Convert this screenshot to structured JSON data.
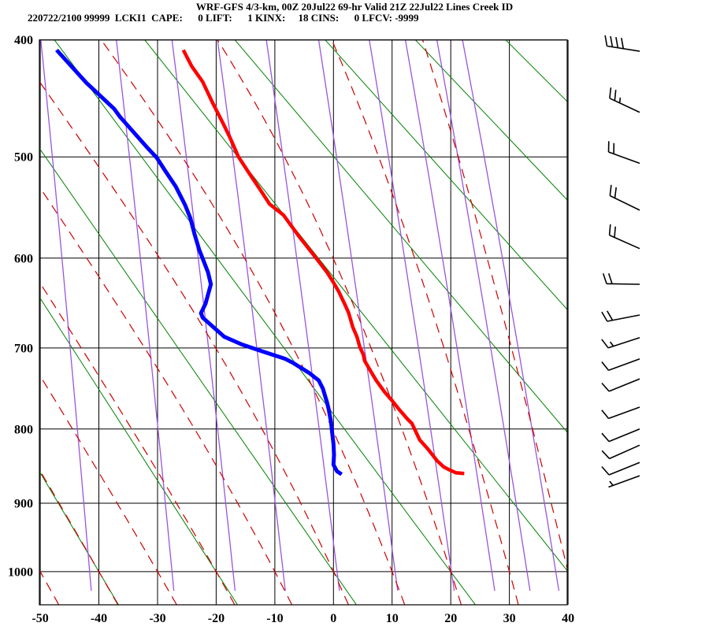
{
  "header": {
    "title_line1": "WRF-GFS 4/3-km, 00Z 20Jul22 69-hr Valid 21Z 22Jul22 Lines Creek ID",
    "title_line2": "220722/2100 99999  LCKI1  CAPE:      0 LIFT:      1 KINX:     18 CINS:      0 LFCV: -9999"
  },
  "colors": {
    "temperature": "#ff0000",
    "dewpoint": "#0000ff",
    "dry_adiabat": "#008000",
    "moist_adiabat": "#cc0000",
    "mixing_ratio": "#9955dd",
    "grid": "#000000",
    "text": "#000000",
    "background": "#ffffff"
  },
  "chart_data": {
    "type": "line",
    "chart_style": "stuve-sounding",
    "title": "WRF-GFS 4/3-km, 00Z 20Jul22 69-hr Valid 21Z 22Jul22 Lines Creek ID",
    "x_axis": {
      "unit": "degC",
      "range": [
        -50.1,
        39.9
      ],
      "ticks": [
        -50,
        -40,
        -30,
        -20,
        -10,
        0,
        10,
        20,
        30,
        40
      ]
    },
    "y_axis": {
      "unit": "hPa",
      "range": [
        400,
        1051
      ],
      "scale": "p^0.286",
      "ticks": [
        400,
        500,
        600,
        700,
        800,
        900,
        1000
      ]
    },
    "grid": "on",
    "background_lines": {
      "dry_adiabats_theta_C": [
        -40,
        -20,
        0,
        20,
        40,
        60,
        80,
        100,
        120
      ],
      "moist_adiabats_thetaw_C": [
        -60,
        -50,
        -40,
        -30,
        -20,
        -10,
        0,
        10,
        20,
        30,
        40
      ],
      "mixing_ratio_g_kg": [
        0.1,
        0.4,
        1,
        2,
        4,
        8,
        15,
        23,
        33,
        44
      ]
    },
    "series": [
      {
        "name": "temperature",
        "color": "#ff0000",
        "points": [
          [
            408,
            -25.6
          ],
          [
            421,
            -24.2
          ],
          [
            434,
            -22.3
          ],
          [
            452,
            -20.6
          ],
          [
            470,
            -18.8
          ],
          [
            483,
            -17.6
          ],
          [
            500,
            -16.2
          ],
          [
            516,
            -14.3
          ],
          [
            531,
            -12.5
          ],
          [
            545,
            -10.9
          ],
          [
            556,
            -8.5
          ],
          [
            578,
            -5.8
          ],
          [
            602,
            -2.7
          ],
          [
            615,
            -1.1
          ],
          [
            626,
            0.0
          ],
          [
            636,
            0.9
          ],
          [
            651,
            2.0
          ],
          [
            660,
            2.6
          ],
          [
            676,
            3.3
          ],
          [
            687,
            4.0
          ],
          [
            699,
            4.5
          ],
          [
            708,
            5.1
          ],
          [
            715,
            5.3
          ],
          [
            727,
            6.3
          ],
          [
            739,
            7.3
          ],
          [
            753,
            8.7
          ],
          [
            763,
            9.9
          ],
          [
            775,
            11.2
          ],
          [
            787,
            12.6
          ],
          [
            793,
            13.4
          ],
          [
            814,
            14.7
          ],
          [
            826,
            16.1
          ],
          [
            842,
            17.7
          ],
          [
            850,
            18.8
          ],
          [
            854,
            19.8
          ],
          [
            858,
            20.9
          ],
          [
            859,
            22.3
          ]
        ]
      },
      {
        "name": "dewpoint",
        "color": "#0000ff",
        "points": [
          [
            408,
            -47.2
          ],
          [
            435,
            -42.1
          ],
          [
            457,
            -37.4
          ],
          [
            464,
            -36.4
          ],
          [
            490,
            -32.0
          ],
          [
            501,
            -30.1
          ],
          [
            513,
            -28.7
          ],
          [
            528,
            -26.9
          ],
          [
            546,
            -25.3
          ],
          [
            559,
            -24.4
          ],
          [
            575,
            -23.7
          ],
          [
            591,
            -22.9
          ],
          [
            602,
            -22.2
          ],
          [
            615,
            -21.4
          ],
          [
            628,
            -20.9
          ],
          [
            649,
            -21.8
          ],
          [
            660,
            -22.6
          ],
          [
            665,
            -22.3
          ],
          [
            672,
            -21.1
          ],
          [
            687,
            -18.6
          ],
          [
            696,
            -15.6
          ],
          [
            704,
            -12.1
          ],
          [
            713,
            -8.2
          ],
          [
            718,
            -6.8
          ],
          [
            730,
            -4.1
          ],
          [
            739,
            -2.5
          ],
          [
            749,
            -1.8
          ],
          [
            766,
            -1.1
          ],
          [
            775,
            -0.8
          ],
          [
            792,
            -0.4
          ],
          [
            806,
            -0.2
          ],
          [
            819,
            0.0
          ],
          [
            834,
            0.1
          ],
          [
            847,
            0.0
          ],
          [
            856,
            0.6
          ],
          [
            860,
            1.4
          ]
        ]
      }
    ],
    "wind_barbs": [
      {
        "p": 409,
        "dir_deg": 279,
        "spd_kt": 40
      },
      {
        "p": 460,
        "dir_deg": 295,
        "spd_kt": 25
      },
      {
        "p": 506,
        "dir_deg": 290,
        "spd_kt": 20
      },
      {
        "p": 551,
        "dir_deg": 296,
        "spd_kt": 20
      },
      {
        "p": 590,
        "dir_deg": 294,
        "spd_kt": 20
      },
      {
        "p": 628,
        "dir_deg": 271,
        "spd_kt": 20
      },
      {
        "p": 662,
        "dir_deg": 259,
        "spd_kt": 20
      },
      {
        "p": 688,
        "dir_deg": 252,
        "spd_kt": 15
      },
      {
        "p": 713,
        "dir_deg": 250,
        "spd_kt": 10
      },
      {
        "p": 737,
        "dir_deg": 248,
        "spd_kt": 10
      },
      {
        "p": 772,
        "dir_deg": 250,
        "spd_kt": 10
      },
      {
        "p": 800,
        "dir_deg": 248,
        "spd_kt": 10
      },
      {
        "p": 821,
        "dir_deg": 246,
        "spd_kt": 10
      },
      {
        "p": 844,
        "dir_deg": 248,
        "spd_kt": 10
      },
      {
        "p": 862,
        "dir_deg": 250,
        "spd_kt": 5
      }
    ]
  }
}
